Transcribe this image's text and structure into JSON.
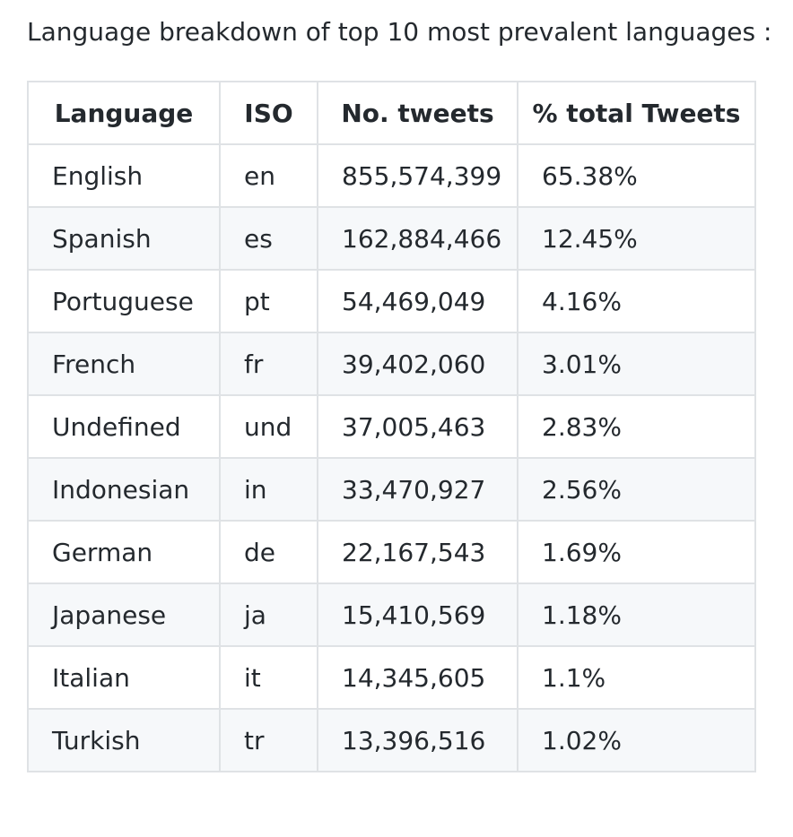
{
  "intro": "Language breakdown of top 10 most prevalent languages :",
  "table": {
    "headers": [
      "Language",
      "ISO",
      "No. tweets",
      "% total Tweets"
    ],
    "rows": [
      [
        "English",
        "en",
        "855,574,399",
        "65.38%"
      ],
      [
        "Spanish",
        "es",
        "162,884,466",
        "12.45%"
      ],
      [
        "Portuguese",
        "pt",
        "54,469,049",
        "4.16%"
      ],
      [
        "French",
        "fr",
        "39,402,060",
        "3.01%"
      ],
      [
        "Undefined",
        "und",
        "37,005,463",
        "2.83%"
      ],
      [
        "Indonesian",
        "in",
        "33,470,927",
        "2.56%"
      ],
      [
        "German",
        "de",
        "22,167,543",
        "1.69%"
      ],
      [
        "Japanese",
        "ja",
        "15,410,569",
        "1.18%"
      ],
      [
        "Italian",
        "it",
        "14,345,605",
        "1.1%"
      ],
      [
        "Turkish",
        "tr",
        "13,396,516",
        "1.02%"
      ]
    ]
  }
}
